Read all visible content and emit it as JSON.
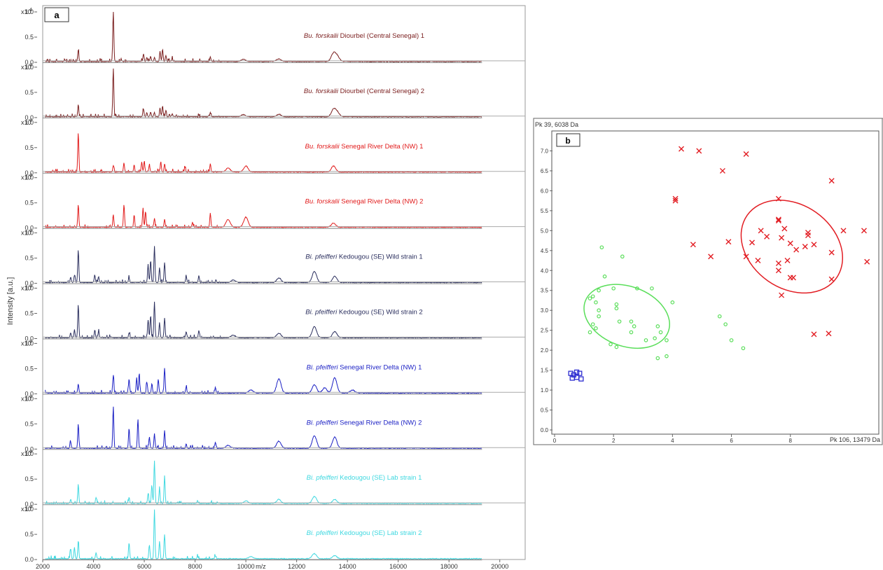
{
  "panel_a": {
    "label": "a",
    "ylabel": "Intensity [a.u.]",
    "xlabel_unit": "m/z",
    "y_multiplier": "x10",
    "y_multiplier_exp": "4",
    "x_ticks": [
      "2000",
      "4000",
      "6000",
      "8000",
      "10000",
      "12000",
      "14000",
      "16000",
      "18000",
      "20000"
    ],
    "y_ticks": [
      "0.0",
      "0.5",
      "1.0"
    ]
  },
  "panel_b": {
    "label": "b",
    "y_axis_title": "Pk 39, 6038 Da",
    "x_axis_title": "Pk 106, 13479 Da",
    "x_ticks": [
      "0",
      "2",
      "4",
      "6",
      "8"
    ],
    "y_ticks": [
      "0.0",
      "0.5",
      "1.0",
      "1.5",
      "2.0",
      "2.5",
      "3.0",
      "3.5",
      "4.0",
      "4.5",
      "5.0",
      "5.5",
      "6.0",
      "6.5",
      "7.0"
    ]
  },
  "chart_data": [
    {
      "type": "line",
      "title": "",
      "xlabel": "m/z",
      "ylabel": "Intensity [a.u.]",
      "xlim": [
        2000,
        21000
      ],
      "ylim": [
        0,
        1.0
      ],
      "series": [
        {
          "italic": "Bu. forskalii",
          "rest": " Diourbel (Central Senegal) 1",
          "color": "#7a1e1e",
          "peaks": [
            [
              3400,
              0.22
            ],
            [
              4780,
              1.0
            ],
            [
              5970,
              0.15
            ],
            [
              6100,
              0.08
            ],
            [
              6250,
              0.1
            ],
            [
              6400,
              0.08
            ],
            [
              6620,
              0.2
            ],
            [
              6720,
              0.24
            ],
            [
              6850,
              0.12
            ],
            [
              7100,
              0.06
            ],
            [
              8600,
              0.09
            ],
            [
              9900,
              0.04
            ],
            [
              11300,
              0.05
            ],
            [
              13450,
              0.16
            ],
            [
              13600,
              0.1
            ]
          ]
        },
        {
          "italic": "Bu. forskalii",
          "rest": " Diourbel (Central Senegal) 2",
          "color": "#7a1e1e",
          "peaks": [
            [
              3400,
              0.24
            ],
            [
              4780,
              0.96
            ],
            [
              5970,
              0.15
            ],
            [
              6100,
              0.08
            ],
            [
              6250,
              0.09
            ],
            [
              6400,
              0.08
            ],
            [
              6620,
              0.18
            ],
            [
              6720,
              0.22
            ],
            [
              6850,
              0.12
            ],
            [
              7100,
              0.06
            ],
            [
              8600,
              0.08
            ],
            [
              9900,
              0.04
            ],
            [
              11300,
              0.05
            ],
            [
              13450,
              0.14
            ],
            [
              13600,
              0.09
            ]
          ]
        },
        {
          "italic": "Bu. forskalii",
          "rest": " Senegal River Delta (NW) 1",
          "color": "#e11b1b",
          "peaks": [
            [
              3400,
              0.78
            ],
            [
              4780,
              0.12
            ],
            [
              5200,
              0.18
            ],
            [
              5600,
              0.14
            ],
            [
              5900,
              0.2
            ],
            [
              6000,
              0.22
            ],
            [
              6200,
              0.14
            ],
            [
              6650,
              0.2
            ],
            [
              6800,
              0.16
            ],
            [
              7600,
              0.09
            ],
            [
              8600,
              0.16
            ],
            [
              9300,
              0.08
            ],
            [
              10000,
              0.12
            ],
            [
              13450,
              0.12
            ]
          ]
        },
        {
          "italic": "Bu. forskalii",
          "rest": " Senegal River Delta (NW) 2",
          "color": "#e11b1b",
          "peaks": [
            [
              3400,
              0.45
            ],
            [
              4780,
              0.25
            ],
            [
              5200,
              0.45
            ],
            [
              5600,
              0.25
            ],
            [
              5950,
              0.38
            ],
            [
              6050,
              0.32
            ],
            [
              6400,
              0.18
            ],
            [
              6800,
              0.16
            ],
            [
              7900,
              0.1
            ],
            [
              8600,
              0.28
            ],
            [
              9300,
              0.15
            ],
            [
              10000,
              0.2
            ],
            [
              13450,
              0.08
            ]
          ]
        },
        {
          "italic": "Bi. pfeifferi",
          "rest": " Kedougou (SE) Wild strain 1",
          "color": "#2b2f5e",
          "peaks": [
            [
              3100,
              0.1
            ],
            [
              3250,
              0.15
            ],
            [
              3400,
              0.65
            ],
            [
              4050,
              0.15
            ],
            [
              4200,
              0.12
            ],
            [
              5400,
              0.1
            ],
            [
              6150,
              0.35
            ],
            [
              6250,
              0.45
            ],
            [
              6400,
              0.72
            ],
            [
              6600,
              0.3
            ],
            [
              6800,
              0.4
            ],
            [
              7650,
              0.12
            ],
            [
              8150,
              0.14
            ],
            [
              9500,
              0.05
            ],
            [
              11300,
              0.09
            ],
            [
              12700,
              0.22
            ],
            [
              13500,
              0.12
            ]
          ]
        },
        {
          "italic": "Bi. pfeifferi",
          "rest": " Kedougou (SE) Wild strain 2",
          "color": "#2b2f5e",
          "peaks": [
            [
              3100,
              0.1
            ],
            [
              3250,
              0.15
            ],
            [
              3400,
              0.65
            ],
            [
              4050,
              0.15
            ],
            [
              4200,
              0.12
            ],
            [
              5400,
              0.1
            ],
            [
              6150,
              0.35
            ],
            [
              6250,
              0.45
            ],
            [
              6400,
              0.72
            ],
            [
              6600,
              0.3
            ],
            [
              6800,
              0.4
            ],
            [
              7650,
              0.12
            ],
            [
              8150,
              0.14
            ],
            [
              9500,
              0.05
            ],
            [
              11300,
              0.09
            ],
            [
              12700,
              0.22
            ],
            [
              13500,
              0.12
            ]
          ]
        },
        {
          "italic": "Bi. pfeifferi",
          "rest": " Senegal River Delta (NW) 1",
          "color": "#1a1fc4",
          "peaks": [
            [
              3400,
              0.18
            ],
            [
              4780,
              0.35
            ],
            [
              5400,
              0.28
            ],
            [
              5700,
              0.3
            ],
            [
              5800,
              0.38
            ],
            [
              6100,
              0.22
            ],
            [
              6300,
              0.18
            ],
            [
              6550,
              0.28
            ],
            [
              6800,
              0.5
            ],
            [
              7650,
              0.12
            ],
            [
              8800,
              0.1
            ],
            [
              10200,
              0.06
            ],
            [
              11300,
              0.28
            ],
            [
              12700,
              0.16
            ],
            [
              13100,
              0.1
            ],
            [
              13500,
              0.3
            ],
            [
              14200,
              0.06
            ]
          ]
        },
        {
          "italic": "Bi. pfeifferi",
          "rest": " Senegal River Delta (NW) 2",
          "color": "#1a1fc4",
          "peaks": [
            [
              3100,
              0.12
            ],
            [
              3400,
              0.48
            ],
            [
              4780,
              0.82
            ],
            [
              5400,
              0.4
            ],
            [
              5750,
              0.58
            ],
            [
              6200,
              0.22
            ],
            [
              6400,
              0.28
            ],
            [
              6800,
              0.35
            ],
            [
              7650,
              0.08
            ],
            [
              8800,
              0.12
            ],
            [
              9300,
              0.06
            ],
            [
              11300,
              0.14
            ],
            [
              12700,
              0.25
            ],
            [
              13500,
              0.22
            ]
          ]
        },
        {
          "italic": "Bi. pfeifferi",
          "rest": " Kedougou (SE) Lab strain 1",
          "color": "#3fd8e0",
          "peaks": [
            [
              3100,
              0.08
            ],
            [
              3400,
              0.38
            ],
            [
              4100,
              0.12
            ],
            [
              5400,
              0.12
            ],
            [
              6150,
              0.2
            ],
            [
              6300,
              0.35
            ],
            [
              6400,
              0.85
            ],
            [
              6600,
              0.3
            ],
            [
              6800,
              0.55
            ],
            [
              8100,
              0.06
            ],
            [
              10000,
              0.05
            ],
            [
              11300,
              0.08
            ],
            [
              12700,
              0.14
            ],
            [
              13500,
              0.08
            ]
          ]
        },
        {
          "italic": "Bi. pfeifferi",
          "rest": " Kedougou (SE) Lab strain 2",
          "color": "#3fd8e0",
          "peaks": [
            [
              3100,
              0.2
            ],
            [
              3250,
              0.22
            ],
            [
              3400,
              0.35
            ],
            [
              4100,
              0.12
            ],
            [
              5400,
              0.32
            ],
            [
              6200,
              0.28
            ],
            [
              6400,
              0.98
            ],
            [
              6600,
              0.35
            ],
            [
              6800,
              0.48
            ],
            [
              8100,
              0.05
            ],
            [
              8800,
              0.06
            ],
            [
              10200,
              0.04
            ],
            [
              12700,
              0.1
            ],
            [
              13500,
              0.06
            ]
          ]
        }
      ]
    },
    {
      "type": "scatter",
      "title": "",
      "xlabel": "Pk 106, 13479 Da",
      "ylabel": "Pk 39, 6038 Da",
      "xlim": [
        0,
        11
      ],
      "ylim": [
        0,
        7.5
      ],
      "grid": false,
      "series": [
        {
          "marker": "cross",
          "color": "#e21e24",
          "points": [
            [
              4.3,
              7.05
            ],
            [
              4.9,
              7.0
            ],
            [
              6.5,
              6.92
            ],
            [
              5.7,
              6.5
            ],
            [
              9.4,
              6.25
            ],
            [
              4.1,
              5.8
            ],
            [
              4.1,
              5.75
            ],
            [
              7.6,
              5.8
            ],
            [
              7.6,
              5.28
            ],
            [
              7.6,
              5.25
            ],
            [
              7.0,
              5.0
            ],
            [
              7.8,
              5.05
            ],
            [
              9.8,
              5.0
            ],
            [
              10.5,
              5.0
            ],
            [
              7.2,
              4.85
            ],
            [
              8.6,
              4.95
            ],
            [
              8.6,
              4.88
            ],
            [
              7.7,
              4.82
            ],
            [
              6.7,
              4.7
            ],
            [
              5.9,
              4.72
            ],
            [
              4.7,
              4.65
            ],
            [
              8.0,
              4.68
            ],
            [
              8.8,
              4.65
            ],
            [
              8.5,
              4.6
            ],
            [
              8.2,
              4.52
            ],
            [
              9.4,
              4.45
            ],
            [
              5.3,
              4.35
            ],
            [
              6.5,
              4.35
            ],
            [
              6.9,
              4.25
            ],
            [
              7.6,
              4.18
            ],
            [
              7.9,
              4.25
            ],
            [
              10.6,
              4.22
            ],
            [
              7.6,
              4.0
            ],
            [
              8.0,
              3.82
            ],
            [
              8.1,
              3.82
            ],
            [
              9.4,
              3.78
            ],
            [
              7.7,
              3.38
            ],
            [
              8.8,
              2.4
            ],
            [
              9.3,
              2.42
            ]
          ]
        },
        {
          "marker": "circle",
          "color": "#5ade5a",
          "points": [
            [
              1.6,
              4.58
            ],
            [
              2.3,
              4.35
            ],
            [
              1.7,
              3.85
            ],
            [
              1.2,
              3.3
            ],
            [
              1.3,
              3.35
            ],
            [
              1.5,
              3.5
            ],
            [
              2.0,
              3.55
            ],
            [
              2.8,
              3.55
            ],
            [
              3.3,
              3.55
            ],
            [
              1.4,
              3.2
            ],
            [
              2.1,
              3.15
            ],
            [
              2.1,
              3.05
            ],
            [
              1.5,
              3.0
            ],
            [
              1.5,
              2.85
            ],
            [
              2.2,
              2.72
            ],
            [
              1.3,
              2.65
            ],
            [
              1.4,
              2.55
            ],
            [
              2.6,
              2.72
            ],
            [
              2.7,
              2.6
            ],
            [
              3.5,
              2.6
            ],
            [
              3.6,
              2.45
            ],
            [
              1.2,
              2.45
            ],
            [
              2.6,
              2.45
            ],
            [
              3.4,
              2.3
            ],
            [
              3.1,
              2.25
            ],
            [
              1.9,
              2.15
            ],
            [
              2.1,
              2.08
            ],
            [
              3.8,
              2.25
            ],
            [
              3.5,
              1.8
            ],
            [
              3.8,
              1.85
            ],
            [
              4.0,
              3.2
            ],
            [
              5.6,
              2.85
            ],
            [
              5.8,
              2.65
            ],
            [
              6.0,
              2.25
            ],
            [
              6.4,
              2.05
            ]
          ]
        },
        {
          "marker": "square",
          "color": "#2a2ad0",
          "points": [
            [
              0.55,
              1.42
            ],
            [
              0.75,
              1.45
            ],
            [
              0.65,
              1.38
            ],
            [
              0.85,
              1.42
            ],
            [
              0.6,
              1.3
            ],
            [
              0.75,
              1.32
            ],
            [
              0.9,
              1.28
            ]
          ]
        }
      ],
      "ellipses": [
        {
          "cx": 8.05,
          "cy": 4.6,
          "rx": 1.85,
          "ry": 1.05,
          "angle_deg": 35,
          "color": "#e21e24"
        },
        {
          "cx": 2.45,
          "cy": 2.85,
          "rx": 1.5,
          "ry": 0.75,
          "angle_deg": 20,
          "color": "#5ade5a"
        }
      ]
    }
  ]
}
